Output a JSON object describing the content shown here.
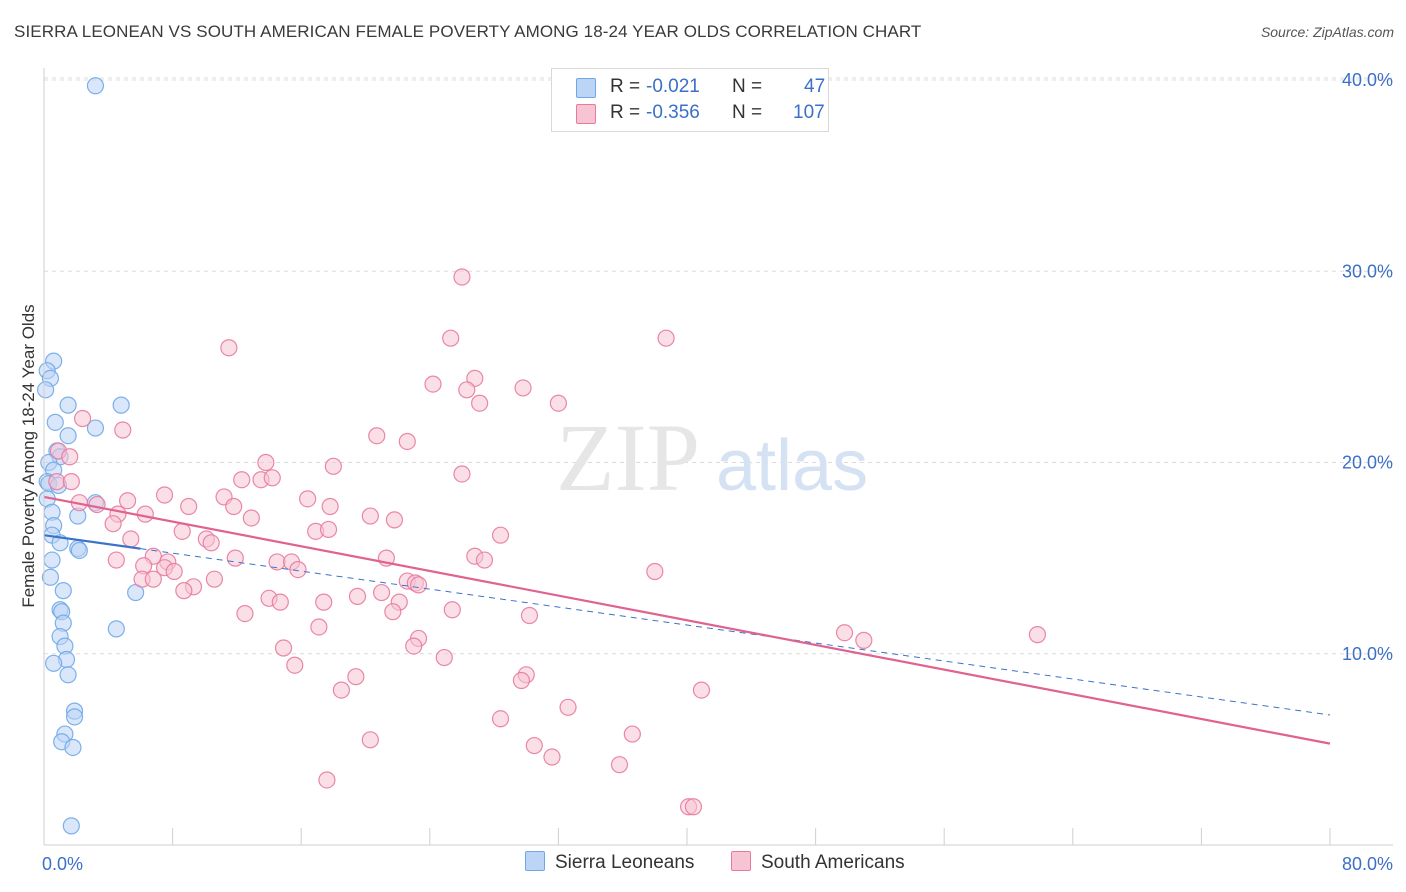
{
  "title": "SIERRA LEONEAN VS SOUTH AMERICAN FEMALE POVERTY AMONG 18-24 YEAR OLDS CORRELATION CHART",
  "source": "Source: ZipAtlas.com",
  "watermark": {
    "zip": "ZIP",
    "atlas": "atlas"
  },
  "legend": {
    "r_label": "R =",
    "n_label": "N =",
    "series": [
      {
        "name": "Sierra Leoneans",
        "r": "-0.021",
        "n": "47",
        "color": "#6fa8e8",
        "fill": "#bcd4f5"
      },
      {
        "name": "South Americans",
        "r": "-0.356",
        "n": "107",
        "color": "#e87aa0",
        "fill": "#f7c4d4"
      }
    ]
  },
  "chart_data": {
    "type": "scatter",
    "title": "SIERRA LEONEAN VS SOUTH AMERICAN FEMALE POVERTY AMONG 18-24 YEAR OLDS CORRELATION CHART",
    "xlabel": "",
    "ylabel": "Female Poverty Among 18-24 Year Olds",
    "xlim": [
      0,
      80
    ],
    "ylim": [
      0,
      40
    ],
    "x_tick_labels": [
      "0.0%",
      "80.0%"
    ],
    "y_ticks": [
      10,
      20,
      30,
      40
    ],
    "y_tick_labels": [
      "10.0%",
      "20.0%",
      "30.0%",
      "40.0%"
    ],
    "grid": true,
    "series": [
      {
        "name": "Sierra Leoneans",
        "trend": {
          "x": [
            0.0,
            80.0
          ],
          "y": [
            16.2,
            6.8
          ],
          "solid_to_x": 6.0
        },
        "points": [
          [
            3.2,
            39.7
          ],
          [
            0.6,
            25.3
          ],
          [
            0.2,
            24.8
          ],
          [
            0.4,
            24.4
          ],
          [
            0.1,
            23.8
          ],
          [
            1.5,
            23.0
          ],
          [
            4.8,
            23.0
          ],
          [
            0.7,
            22.1
          ],
          [
            3.2,
            21.8
          ],
          [
            1.5,
            21.4
          ],
          [
            0.8,
            20.6
          ],
          [
            1.0,
            20.3
          ],
          [
            0.3,
            20.0
          ],
          [
            0.6,
            19.6
          ],
          [
            0.2,
            19.0
          ],
          [
            0.3,
            18.9
          ],
          [
            0.9,
            18.8
          ],
          [
            0.2,
            18.1
          ],
          [
            3.2,
            17.9
          ],
          [
            0.5,
            17.4
          ],
          [
            2.1,
            17.2
          ],
          [
            0.6,
            16.7
          ],
          [
            0.5,
            16.2
          ],
          [
            1.0,
            15.8
          ],
          [
            2.1,
            15.5
          ],
          [
            2.2,
            15.4
          ],
          [
            0.5,
            14.9
          ],
          [
            0.4,
            14.0
          ],
          [
            5.7,
            13.2
          ],
          [
            1.2,
            13.3
          ],
          [
            1.0,
            12.3
          ],
          [
            1.1,
            12.2
          ],
          [
            1.2,
            11.6
          ],
          [
            4.5,
            11.3
          ],
          [
            1.0,
            10.9
          ],
          [
            1.3,
            10.4
          ],
          [
            1.4,
            9.7
          ],
          [
            0.6,
            9.5
          ],
          [
            1.5,
            8.9
          ],
          [
            1.9,
            7.0
          ],
          [
            1.9,
            6.7
          ],
          [
            1.3,
            5.8
          ],
          [
            1.1,
            5.4
          ],
          [
            1.8,
            5.1
          ],
          [
            1.7,
            1.0
          ]
        ]
      },
      {
        "name": "South Americans",
        "trend": {
          "x": [
            0.0,
            80.0
          ],
          "y": [
            18.2,
            5.3
          ]
        },
        "points": [
          [
            26.0,
            29.7
          ],
          [
            11.5,
            26.0
          ],
          [
            25.3,
            26.5
          ],
          [
            38.7,
            26.5
          ],
          [
            24.2,
            24.1
          ],
          [
            26.8,
            24.4
          ],
          [
            26.3,
            23.8
          ],
          [
            29.8,
            23.9
          ],
          [
            27.1,
            23.1
          ],
          [
            32.0,
            23.1
          ],
          [
            2.4,
            22.3
          ],
          [
            4.9,
            21.7
          ],
          [
            20.7,
            21.4
          ],
          [
            22.6,
            21.1
          ],
          [
            0.9,
            20.6
          ],
          [
            1.6,
            20.3
          ],
          [
            13.8,
            20.0
          ],
          [
            18.0,
            19.8
          ],
          [
            26.0,
            19.4
          ],
          [
            12.3,
            19.1
          ],
          [
            13.5,
            19.1
          ],
          [
            14.2,
            19.2
          ],
          [
            0.8,
            19.0
          ],
          [
            1.7,
            19.0
          ],
          [
            7.5,
            18.3
          ],
          [
            11.2,
            18.2
          ],
          [
            16.4,
            18.1
          ],
          [
            2.2,
            17.9
          ],
          [
            3.3,
            17.8
          ],
          [
            5.2,
            18.0
          ],
          [
            9.0,
            17.7
          ],
          [
            11.8,
            17.7
          ],
          [
            17.8,
            17.7
          ],
          [
            4.6,
            17.3
          ],
          [
            6.3,
            17.3
          ],
          [
            12.9,
            17.1
          ],
          [
            20.3,
            17.2
          ],
          [
            21.8,
            17.0
          ],
          [
            4.3,
            16.8
          ],
          [
            8.6,
            16.4
          ],
          [
            16.9,
            16.4
          ],
          [
            17.7,
            16.5
          ],
          [
            28.4,
            16.2
          ],
          [
            5.4,
            16.0
          ],
          [
            10.1,
            16.0
          ],
          [
            10.4,
            15.8
          ],
          [
            6.8,
            15.1
          ],
          [
            11.9,
            15.0
          ],
          [
            21.3,
            15.0
          ],
          [
            26.8,
            15.1
          ],
          [
            27.4,
            14.9
          ],
          [
            4.5,
            14.9
          ],
          [
            7.7,
            14.8
          ],
          [
            14.5,
            14.8
          ],
          [
            15.4,
            14.8
          ],
          [
            6.2,
            14.6
          ],
          [
            7.5,
            14.5
          ],
          [
            8.1,
            14.3
          ],
          [
            15.8,
            14.4
          ],
          [
            38.0,
            14.3
          ],
          [
            6.1,
            13.9
          ],
          [
            6.8,
            13.9
          ],
          [
            10.6,
            13.9
          ],
          [
            22.6,
            13.8
          ],
          [
            23.1,
            13.7
          ],
          [
            23.3,
            13.6
          ],
          [
            9.3,
            13.5
          ],
          [
            8.7,
            13.3
          ],
          [
            21.0,
            13.2
          ],
          [
            19.5,
            13.0
          ],
          [
            14.0,
            12.9
          ],
          [
            14.7,
            12.7
          ],
          [
            17.4,
            12.7
          ],
          [
            22.1,
            12.7
          ],
          [
            21.7,
            12.2
          ],
          [
            25.4,
            12.3
          ],
          [
            12.5,
            12.1
          ],
          [
            30.2,
            12.0
          ],
          [
            17.1,
            11.4
          ],
          [
            49.8,
            11.1
          ],
          [
            51.0,
            10.7
          ],
          [
            61.8,
            11.0
          ],
          [
            23.3,
            10.8
          ],
          [
            23.0,
            10.4
          ],
          [
            14.9,
            10.3
          ],
          [
            24.9,
            9.8
          ],
          [
            15.6,
            9.4
          ],
          [
            30.0,
            8.9
          ],
          [
            19.4,
            8.8
          ],
          [
            29.7,
            8.6
          ],
          [
            18.5,
            8.1
          ],
          [
            40.9,
            8.1
          ],
          [
            32.6,
            7.2
          ],
          [
            28.4,
            6.6
          ],
          [
            36.6,
            5.8
          ],
          [
            20.3,
            5.5
          ],
          [
            30.5,
            5.2
          ],
          [
            31.6,
            4.6
          ],
          [
            35.8,
            4.2
          ],
          [
            17.6,
            3.4
          ],
          [
            40.1,
            2.0
          ],
          [
            40.4,
            2.0
          ]
        ]
      }
    ]
  }
}
